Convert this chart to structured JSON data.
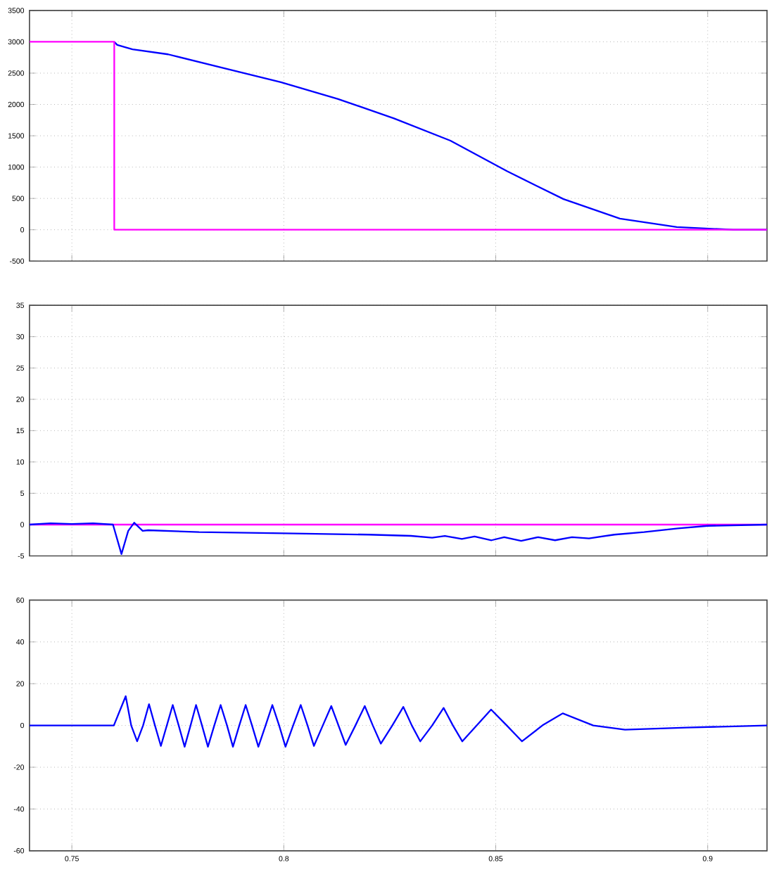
{
  "chart_data": [
    {
      "type": "line",
      "xlim": [
        0.74,
        0.914
      ],
      "ylim": [
        -500,
        3500
      ],
      "xticks": [
        0.75,
        0.8,
        0.85,
        0.9
      ],
      "yticks": [
        -500,
        0,
        500,
        1000,
        1500,
        2000,
        2500,
        3000,
        3500
      ],
      "grid": true,
      "tick_labels": "y",
      "series": [
        {
          "color": "#0000ff",
          "x": [
            0.76,
            0.7607,
            0.7627,
            0.7643,
            0.7727,
            0.786,
            0.7993,
            0.8127,
            0.826,
            0.8393,
            0.8527,
            0.866,
            0.8793,
            0.8927,
            0.906,
            0.914
          ],
          "values": [
            3000,
            2950,
            2911,
            2880,
            2800,
            2578,
            2356,
            2089,
            1778,
            1422,
            933,
            489,
            178,
            44,
            0,
            0
          ]
        },
        {
          "color": "#ff00ff",
          "x": [
            0.74,
            0.76,
            0.76,
            0.914
          ],
          "values": [
            3000,
            3000,
            0,
            0
          ]
        }
      ]
    },
    {
      "type": "line",
      "xlim": [
        0.74,
        0.914
      ],
      "ylim": [
        -5,
        35
      ],
      "xticks": [
        0.75,
        0.8,
        0.85,
        0.9
      ],
      "yticks": [
        -5,
        0,
        5,
        10,
        15,
        20,
        25,
        30,
        35
      ],
      "grid": true,
      "tick_labels": "y",
      "series": [
        {
          "color": "#ff00ff",
          "x": [
            0.74,
            0.914
          ],
          "values": [
            0,
            0
          ]
        },
        {
          "color": "#0000ff",
          "x": [
            0.74,
            0.745,
            0.75,
            0.755,
            0.7597,
            0.7617,
            0.7633,
            0.7647,
            0.7667,
            0.768,
            0.78,
            0.8,
            0.82,
            0.83,
            0.835,
            0.838,
            0.842,
            0.845,
            0.849,
            0.852,
            0.856,
            0.86,
            0.864,
            0.868,
            0.872,
            0.878,
            0.885,
            0.893,
            0.9,
            0.914
          ],
          "values": [
            0,
            0.2,
            0.1,
            0.2,
            0,
            -4.7,
            -1,
            0.3,
            -1,
            -0.9,
            -1.2,
            -1.4,
            -1.6,
            -1.8,
            -2.1,
            -1.8,
            -2.3,
            -1.9,
            -2.5,
            -2,
            -2.6,
            -2,
            -2.5,
            -2,
            -2.2,
            -1.6,
            -1.2,
            -0.6,
            -0.2,
            0
          ]
        }
      ]
    },
    {
      "type": "line",
      "xlim": [
        0.74,
        0.914
      ],
      "ylim": [
        -60,
        60
      ],
      "xticks": [
        0.75,
        0.8,
        0.85,
        0.9
      ],
      "yticks": [
        -60,
        -40,
        -20,
        0,
        20,
        40,
        60
      ],
      "grid": true,
      "series": [
        {
          "color": "#0000ff",
          "x": [
            0.74,
            0.7599,
            0.7627,
            0.764,
            0.7654,
            0.7668,
            0.7682,
            0.7696,
            0.771,
            0.7724,
            0.7738,
            0.7752,
            0.7766,
            0.778,
            0.7793,
            0.7807,
            0.7821,
            0.7836,
            0.7851,
            0.7866,
            0.788,
            0.7895,
            0.791,
            0.7925,
            0.794,
            0.7957,
            0.7973,
            0.7989,
            0.8004,
            0.8022,
            0.804,
            0.8056,
            0.8071,
            0.8092,
            0.8112,
            0.8129,
            0.8146,
            0.8169,
            0.8191,
            0.821,
            0.8229,
            0.8256,
            0.8282,
            0.8302,
            0.8322,
            0.835,
            0.8377,
            0.8399,
            0.8421,
            0.8455,
            0.8489,
            0.8526,
            0.8562,
            0.861,
            0.8658,
            0.873,
            0.8805,
            0.895,
            0.914
          ],
          "values": [
            0,
            0,
            14,
            0,
            -7.6,
            0,
            10.2,
            0,
            -9.8,
            0,
            9.8,
            0,
            -10.2,
            0,
            9.8,
            0,
            -10.2,
            0,
            9.8,
            0,
            -10.2,
            0,
            9.8,
            0,
            -10.2,
            0,
            9.8,
            0,
            -10.2,
            0,
            9.8,
            0,
            -9.8,
            0,
            9.3,
            0,
            -9.3,
            0,
            9.3,
            0,
            -8.7,
            0,
            8.9,
            0,
            -7.6,
            0,
            8.4,
            0,
            -7.6,
            0,
            7.6,
            0,
            -7.6,
            0,
            5.8,
            0,
            -2,
            -1,
            0
          ]
        }
      ]
    }
  ]
}
